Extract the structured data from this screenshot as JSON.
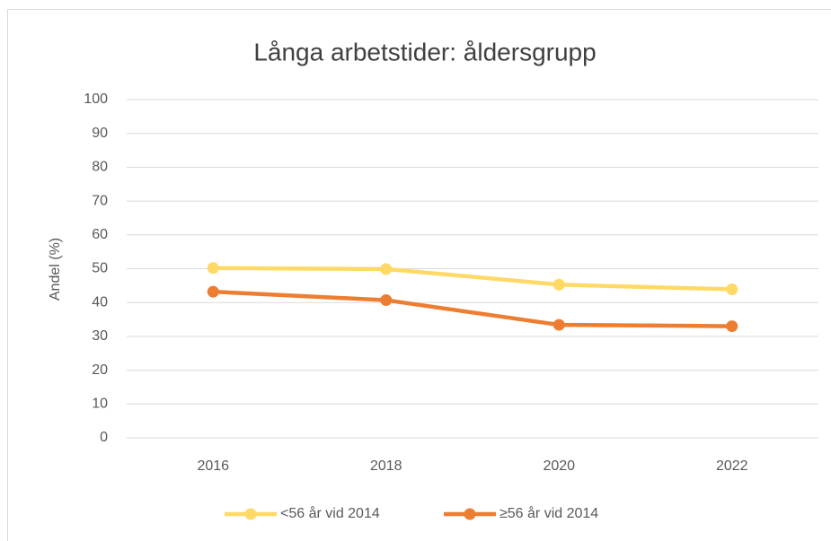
{
  "chart_data": {
    "type": "line",
    "title": "Långa arbetstider: åldersgrupp",
    "y_label": "Andel (%)",
    "categories": [
      "2016",
      "2018",
      "2020",
      "2022"
    ],
    "series": [
      {
        "name": "<56 år vid 2014",
        "color": "#FFD966",
        "values": [
          50.2,
          49.9,
          45.3,
          43.9
        ]
      },
      {
        "name": "≥56 år vid 2014",
        "color": "#ED7D31",
        "values": [
          43.2,
          40.7,
          33.4,
          33.0
        ]
      }
    ],
    "ylim": [
      0,
      100
    ],
    "yticks": [
      0,
      10,
      20,
      30,
      40,
      50,
      60,
      70,
      80,
      90,
      100
    ],
    "grid": true,
    "legend": "bottom"
  }
}
